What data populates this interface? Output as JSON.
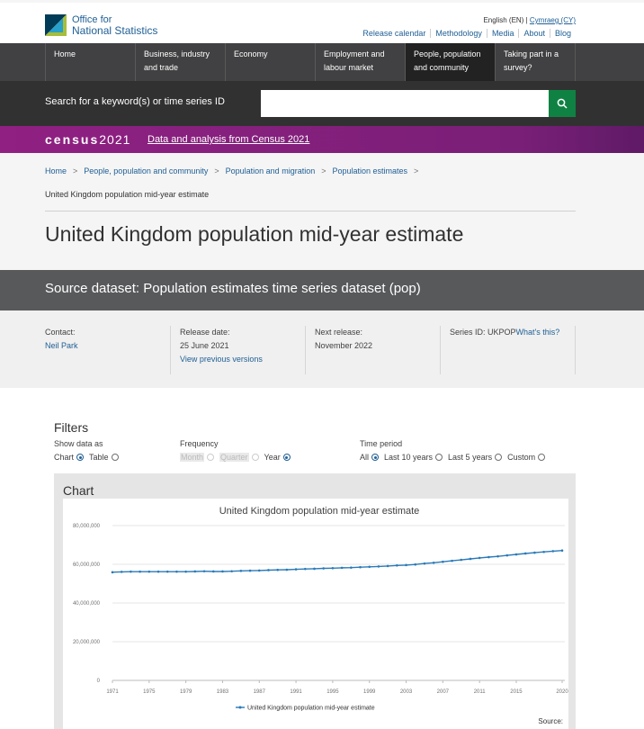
{
  "header": {
    "logo_line1": "Office for",
    "logo_line2": "National Statistics",
    "lang_en": "English (EN)",
    "lang_sep": " | ",
    "lang_cy": "Cymraeg (CY)",
    "links": [
      "Release calendar",
      "Methodology",
      "Media",
      "About",
      "Blog"
    ]
  },
  "nav": {
    "items": [
      {
        "line1": "Home",
        "line2": ""
      },
      {
        "line1": "Business, industry",
        "line2": "and trade"
      },
      {
        "line1": "Economy",
        "line2": ""
      },
      {
        "line1": "Employment and",
        "line2": "labour market"
      },
      {
        "line1": "People, population",
        "line2": "and community"
      },
      {
        "line1": "Taking part in a",
        "line2": "survey?"
      }
    ],
    "active_index": 4
  },
  "search": {
    "label": "Search for a keyword(s) or time series ID",
    "value": ""
  },
  "census": {
    "logo_word": "census",
    "logo_year": "2021",
    "link": "Data and analysis from Census 2021"
  },
  "breadcrumb": {
    "items": [
      "Home",
      "People, population and community",
      "Population and migration",
      "Population estimates"
    ],
    "separator": ">",
    "current": "United Kingdom population mid-year estimate"
  },
  "page_title": "United Kingdom population mid-year estimate",
  "source_dataset": "Source dataset: Population estimates time series dataset (pop)",
  "meta": {
    "contact_label": "Contact:",
    "contact_name": "Neil Park",
    "release_label": "Release date:",
    "release_date": "25 June 2021",
    "previous_versions": "View previous versions",
    "next_label": "Next release:",
    "next_date": "November 2022",
    "series_label": "Series ID: UKPOP",
    "whats_this": "What's this?"
  },
  "filters": {
    "title": "Filters",
    "show_label": "Show data as",
    "show_options": [
      "Chart",
      "Table"
    ],
    "show_selected": "Chart",
    "frequency_label": "Frequency",
    "frequency_options": [
      "Month",
      "Quarter",
      "Year"
    ],
    "frequency_selected": "Year",
    "period_label": "Time period",
    "period_options": [
      "All",
      "Last 10 years",
      "Last 5 years",
      "Custom"
    ],
    "period_selected": "All"
  },
  "chart_panel": {
    "heading": "Chart",
    "source": "Source:"
  },
  "colors": {
    "brand_blue": "#206095",
    "nav_bg": "#414042",
    "census_purple": "#902082",
    "search_green": "#0f8243",
    "series_line": "#2a7ab8"
  },
  "chart_data": {
    "type": "line",
    "title": "United Kingdom population mid-year estimate",
    "xlabel": "",
    "ylabel": "",
    "ylim": [
      0,
      80000000
    ],
    "yticks": [
      "0",
      "20,000,000",
      "40,000,000",
      "60,000,000",
      "80,000,000"
    ],
    "xticks": [
      "1971",
      "1975",
      "1979",
      "1983",
      "1987",
      "1991",
      "1995",
      "1999",
      "2003",
      "2007",
      "2011",
      "2015",
      "2020"
    ],
    "grid": true,
    "legend_position": "bottom",
    "series": [
      {
        "name": "United Kingdom population mid-year estimate",
        "x": [
          1971,
          1972,
          1973,
          1974,
          1975,
          1976,
          1977,
          1978,
          1979,
          1980,
          1981,
          1982,
          1983,
          1984,
          1985,
          1986,
          1987,
          1988,
          1989,
          1990,
          1991,
          1992,
          1993,
          1994,
          1995,
          1996,
          1997,
          1998,
          1999,
          2000,
          2001,
          2002,
          2003,
          2004,
          2005,
          2006,
          2007,
          2008,
          2009,
          2010,
          2011,
          2012,
          2013,
          2014,
          2015,
          2016,
          2017,
          2018,
          2019,
          2020
        ],
        "values": [
          55900000,
          56100000,
          56200000,
          56200000,
          56200000,
          56200000,
          56200000,
          56200000,
          56200000,
          56300000,
          56400000,
          56300000,
          56300000,
          56400000,
          56600000,
          56700000,
          56800000,
          57000000,
          57100000,
          57200000,
          57400000,
          57600000,
          57700000,
          57900000,
          58000000,
          58200000,
          58300000,
          58500000,
          58700000,
          58900000,
          59100000,
          59400000,
          59600000,
          59900000,
          60400000,
          60800000,
          61300000,
          61800000,
          62300000,
          62800000,
          63300000,
          63700000,
          64100000,
          64600000,
          65100000,
          65600000,
          66000000,
          66400000,
          66800000,
          67100000
        ]
      }
    ]
  }
}
